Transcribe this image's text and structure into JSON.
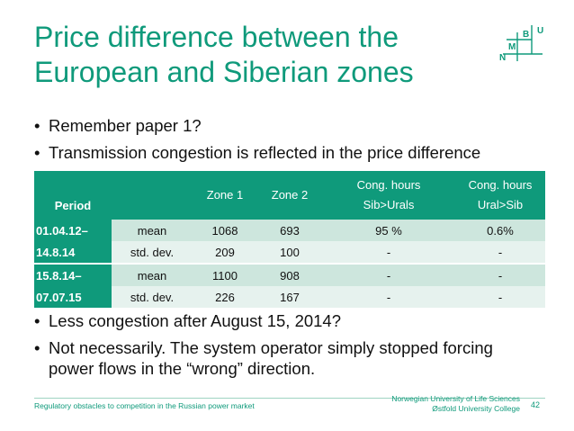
{
  "slide": {
    "title_line1": "Price difference between the",
    "title_line2": "European and Siberian zones",
    "bullets_top": [
      "Remember paper 1?",
      "Transmission congestion is reflected in the price difference"
    ],
    "bullets_bottom": [
      "Less congestion after August 15, 2014?",
      "Not necessarily. The system operator simply stopped forcing power flows in the “wrong” direction."
    ]
  },
  "logo": {
    "letters": [
      "U",
      "B",
      "N",
      "M"
    ],
    "color": "#0f9a7b"
  },
  "table": {
    "headers": {
      "period": "Period",
      "blank": "",
      "zone1": "Zone 1",
      "zone2": "Zone 2",
      "cong_sib_line1": "Cong. hours",
      "cong_sib_line2": "Sib>Urals",
      "cong_ural_line1": "Cong. hours",
      "cong_ural_line2": "Ural>Sib"
    },
    "groups": [
      {
        "period_line1": "01.04.12–",
        "period_line2": "14.8.14",
        "rows": [
          {
            "stat": "mean",
            "zone1": "1068",
            "zone2": "693",
            "cong_sib": "95 %",
            "cong_ural": "0.6%"
          },
          {
            "stat": "std. dev.",
            "zone1": "209",
            "zone2": "100",
            "cong_sib": "-",
            "cong_ural": "-"
          }
        ]
      },
      {
        "period_line1": "15.8.14–",
        "period_line2": "07.07.15",
        "rows": [
          {
            "stat": "mean",
            "zone1": "1100",
            "zone2": "908",
            "cong_sib": "-",
            "cong_ural": "-"
          },
          {
            "stat": "std. dev.",
            "zone1": "226",
            "zone2": "167",
            "cong_sib": "-",
            "cong_ural": "-"
          }
        ]
      }
    ]
  },
  "footer": {
    "left": "Regulatory obstacles to competition in the Russian power market",
    "institution_line1": "Norwegian University of Life Sciences",
    "institution_line2": "Østfold University College",
    "page_number": "42"
  },
  "colors": {
    "accent": "#0f9a7b",
    "row_dark": "#cde6dd",
    "row_light": "#e6f2ee"
  }
}
